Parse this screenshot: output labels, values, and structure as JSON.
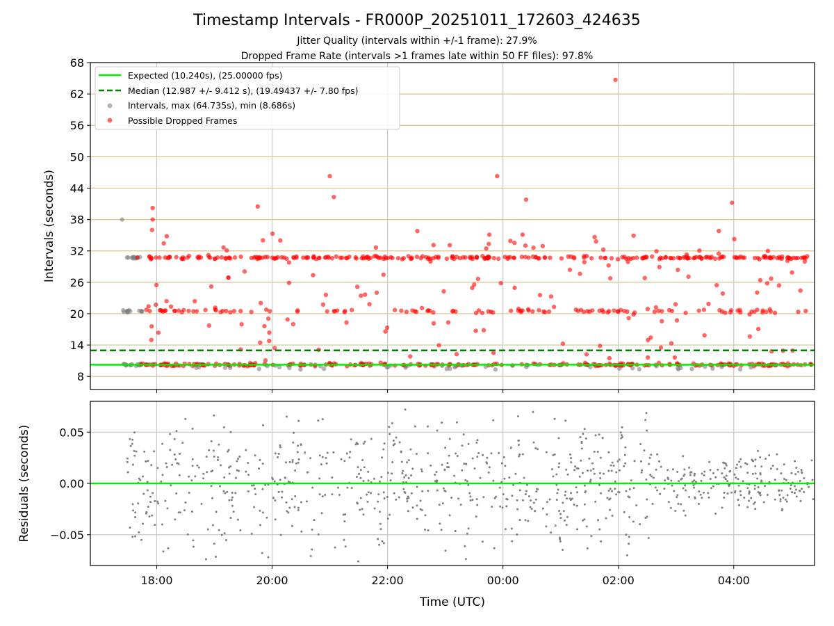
{
  "chart_data": {
    "type": "scatter",
    "title": "Timestamp Intervals - FR000P_20251011_172603_424635",
    "subtitle_line1": "Jitter Quality (intervals within +/-1 frame): 27.9%",
    "subtitle_line2": "Dropped Frame Rate (intervals >1 frames late within 50 FF files): 97.8%",
    "xlabel": "Time (UTC)",
    "x_ticks": [
      "18:00",
      "20:00",
      "22:00",
      "00:00",
      "02:00",
      "04:00"
    ],
    "x_range_hours_from_1800": [
      -1.15,
      11.4
    ],
    "top_panel": {
      "ylabel": "Intervals (seconds)",
      "ylim": [
        5.5,
        68
      ],
      "y_ticks": [
        8,
        14,
        20,
        26,
        32,
        38,
        44,
        50,
        56,
        62,
        68
      ],
      "expected_interval_s": 10.24,
      "median_interval_s": 12.987,
      "legend": [
        "Expected (10.240s), (25.00000 fps)",
        "Median (12.987 +/- 9.412 s), (19.49437 +/- 7.80 fps)",
        "Intervals, max (64.735s), min (8.686s)",
        "Possible Dropped Frames"
      ],
      "interval_bands_s": [
        10.24,
        20.48,
        30.72
      ],
      "max_interval_s": 64.735,
      "min_interval_s": 8.686,
      "notable_outliers": [
        {
          "t_h": -0.07,
          "y": 40.2
        },
        {
          "t_h": -0.07,
          "y": 38
        },
        {
          "t_h": -0.08,
          "y": 36
        },
        {
          "t_h": 1.75,
          "y": 40.5
        },
        {
          "t_h": 3.0,
          "y": 46.3
        },
        {
          "t_h": 3.07,
          "y": 42.3
        },
        {
          "t_h": 5.9,
          "y": 46.3
        },
        {
          "t_h": 6.4,
          "y": 41.8
        },
        {
          "t_h": 7.95,
          "y": 64.7
        },
        {
          "t_h": 9.97,
          "y": 41.2
        }
      ]
    },
    "bottom_panel": {
      "ylabel": "Residuals (seconds)",
      "ylim": [
        -0.08,
        0.08
      ],
      "y_ticks": [
        0.05,
        0.0,
        -0.05
      ],
      "y_tick_labels": [
        "0.05",
        "0.00",
        "−0.05"
      ],
      "zero_line": 0
    },
    "colors": {
      "expected": "#00ee00",
      "median": "#008000",
      "intervals": "#808080",
      "dropped": "#ff0000",
      "hgrid": "#d6c38a",
      "vgrid": "#c8c8c8"
    }
  }
}
